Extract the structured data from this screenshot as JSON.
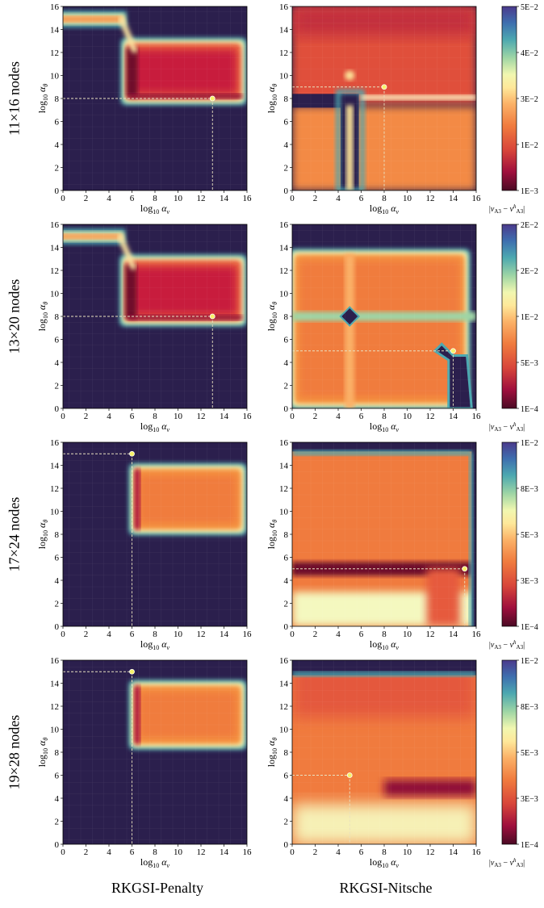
{
  "column_titles": [
    "RKGSI-Penalty",
    "RKGSI-Nitsche"
  ],
  "row_labels": [
    "11×16 nodes",
    "13×20 nodes",
    "17×24 nodes",
    "19×28 nodes"
  ],
  "xlabel": "log10 αv",
  "ylabel": "log10 αθ",
  "chart_data": [
    {
      "type": "heatmap",
      "row": "11×16 nodes",
      "column": "RKGSI-Penalty",
      "x": [
        0,
        16
      ],
      "y": [
        0,
        16
      ],
      "xticks": [
        0,
        2,
        4,
        6,
        8,
        10,
        12,
        14,
        16
      ],
      "yticks": [
        0,
        2,
        4,
        6,
        8,
        10,
        12,
        14,
        16
      ],
      "optimum": {
        "x": 13,
        "y": 8
      }
    },
    {
      "type": "heatmap",
      "row": "11×16 nodes",
      "column": "RKGSI-Nitsche",
      "x": [
        0,
        16
      ],
      "y": [
        0,
        16
      ],
      "xticks": [
        0,
        2,
        4,
        6,
        8,
        10,
        12,
        14,
        16
      ],
      "yticks": [
        0,
        2,
        4,
        6,
        8,
        10,
        12,
        14,
        16
      ],
      "optimum": {
        "x": 8,
        "y": 9
      },
      "colorbar": {
        "ticks": [
          "5E−2",
          "4E−2",
          "3E−2",
          "1E−2",
          "1E−3"
        ],
        "label": "|vA3 − vhA3|"
      }
    },
    {
      "type": "heatmap",
      "row": "13×20 nodes",
      "column": "RKGSI-Penalty",
      "x": [
        0,
        16
      ],
      "y": [
        0,
        16
      ],
      "xticks": [
        0,
        2,
        4,
        6,
        8,
        10,
        12,
        14,
        16
      ],
      "yticks": [
        0,
        2,
        4,
        6,
        8,
        10,
        12,
        14,
        16
      ],
      "optimum": {
        "x": 13,
        "y": 8
      }
    },
    {
      "type": "heatmap",
      "row": "13×20 nodes",
      "column": "RKGSI-Nitsche",
      "x": [
        0,
        16
      ],
      "y": [
        0,
        16
      ],
      "xticks": [
        0,
        2,
        4,
        6,
        8,
        10,
        12,
        14,
        16
      ],
      "yticks": [
        0,
        2,
        4,
        6,
        8,
        10,
        12,
        14,
        16
      ],
      "optimum": {
        "x": 14,
        "y": 5
      },
      "colorbar": {
        "ticks": [
          "2E−2",
          "2E−2",
          "1E−2",
          "5E−3",
          "1E−4"
        ],
        "label": "|vA3 − vhA3|"
      }
    },
    {
      "type": "heatmap",
      "row": "17×24 nodes",
      "column": "RKGSI-Penalty",
      "x": [
        0,
        16
      ],
      "y": [
        0,
        16
      ],
      "xticks": [
        0,
        2,
        4,
        6,
        8,
        10,
        12,
        14,
        16
      ],
      "yticks": [
        0,
        2,
        4,
        6,
        8,
        10,
        12,
        14,
        16
      ],
      "optimum": {
        "x": 6,
        "y": 15
      }
    },
    {
      "type": "heatmap",
      "row": "17×24 nodes",
      "column": "RKGSI-Nitsche",
      "x": [
        0,
        16
      ],
      "y": [
        0,
        16
      ],
      "xticks": [
        0,
        2,
        4,
        6,
        8,
        10,
        12,
        14,
        16
      ],
      "yticks": [
        0,
        2,
        4,
        6,
        8,
        10,
        12,
        14,
        16
      ],
      "optimum": {
        "x": 15,
        "y": 5
      },
      "colorbar": {
        "ticks": [
          "1E−2",
          "8E−3",
          "5E−3",
          "3E−3",
          "1E−4"
        ],
        "label": "|vA3 − vhA3|"
      }
    },
    {
      "type": "heatmap",
      "row": "19×28 nodes",
      "column": "RKGSI-Penalty",
      "x": [
        0,
        16
      ],
      "y": [
        0,
        16
      ],
      "xticks": [
        0,
        2,
        4,
        6,
        8,
        10,
        12,
        14,
        16
      ],
      "yticks": [
        0,
        2,
        4,
        6,
        8,
        10,
        12,
        14,
        16
      ],
      "optimum": {
        "x": 6,
        "y": 15
      }
    },
    {
      "type": "heatmap",
      "row": "19×28 nodes",
      "column": "RKGSI-Nitsche",
      "x": [
        0,
        16
      ],
      "y": [
        0,
        16
      ],
      "xticks": [
        0,
        2,
        4,
        6,
        8,
        10,
        12,
        14,
        16
      ],
      "yticks": [
        0,
        2,
        4,
        6,
        8,
        10,
        12,
        14,
        16
      ],
      "optimum": {
        "x": 5,
        "y": 6
      },
      "colorbar": {
        "ticks": [
          "1E−2",
          "8E−3",
          "5E−3",
          "3E−3",
          "1E−4"
        ],
        "label": "|vA3 − vhA3|"
      }
    }
  ],
  "colors": {
    "background": "#2b1f4d",
    "colormap": [
      "#5e0c2b",
      "#a8113f",
      "#d8453a",
      "#f07b3e",
      "#fbb167",
      "#fee89a",
      "#f1f7b0",
      "#9fd6a5",
      "#4ca8b0",
      "#3e6faf",
      "#5a4a9c"
    ]
  }
}
